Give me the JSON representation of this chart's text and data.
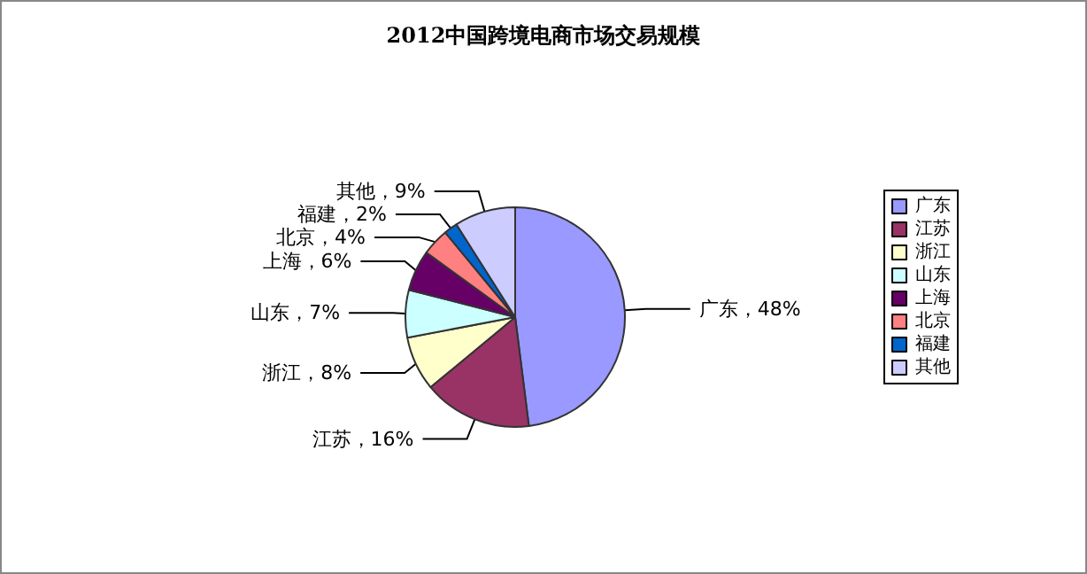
{
  "chart_data": {
    "type": "pie",
    "title": "2012中国跨境电商市场交易规模",
    "categories": [
      "广东",
      "江苏",
      "浙江",
      "山东",
      "上海",
      "北京",
      "福建",
      "其他"
    ],
    "values": [
      48,
      16,
      8,
      7,
      6,
      4,
      2,
      9
    ],
    "value_labels": [
      "广东，48%",
      "江苏，16%",
      "浙江，8%",
      "山东，7%",
      "上海，6%",
      "北京，4%",
      "福建，2%",
      "其他，9%"
    ],
    "colors": [
      "#9999ff",
      "#993366",
      "#ffffcc",
      "#ccffff",
      "#660066",
      "#ff8080",
      "#0066cc",
      "#ccccff"
    ],
    "legend": "right"
  }
}
